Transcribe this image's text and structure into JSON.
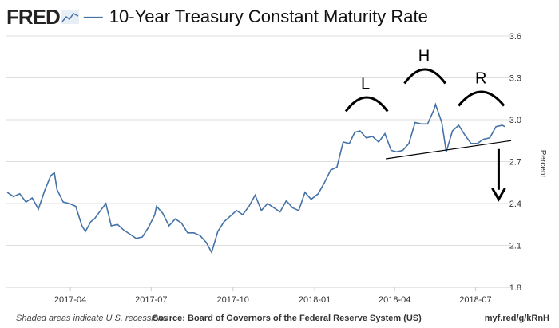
{
  "header": {
    "logo_text": "FRED",
    "logo_icon": "sparkline-icon",
    "title": "10-Year Treasury Constant Maturity Rate"
  },
  "footer": {
    "recession_note": "Shaded areas indicate U.S. recessions",
    "source": "Source: Board of Governors of the Federal Reserve System (US)",
    "short_url": "myf.red/g/kRnH"
  },
  "colors": {
    "series": "#4572a7",
    "grid": "#dddddd",
    "annotation": "#000000"
  },
  "chart_data": {
    "type": "line",
    "title": "10-Year Treasury Constant Maturity Rate",
    "xlabel": "",
    "ylabel": "Percent",
    "ylim": [
      1.8,
      3.6
    ],
    "yticks": [
      1.8,
      2.1,
      2.4,
      2.7,
      3.0,
      3.3,
      3.6
    ],
    "ytick_labels": [
      "1.8",
      "2.1",
      "2.4",
      "2.7",
      "3.0",
      "3.3",
      "3.6"
    ],
    "xlim": [
      "2017-01-19",
      "2018-08-10"
    ],
    "xticks": [
      "2017-04-01",
      "2017-07-01",
      "2017-10-01",
      "2018-01-01",
      "2018-04-01",
      "2018-07-01"
    ],
    "xtick_labels": [
      "2017-04",
      "2017-07",
      "2017-10",
      "2018-01",
      "2018-04",
      "2018-07"
    ],
    "grid": true,
    "series": [
      {
        "x": [
          "2017-01-20",
          "2017-01-27",
          "2017-02-03",
          "2017-02-10",
          "2017-02-17",
          "2017-02-24",
          "2017-03-03",
          "2017-03-10",
          "2017-03-14",
          "2017-03-17",
          "2017-03-24",
          "2017-03-31",
          "2017-04-07",
          "2017-04-14",
          "2017-04-18",
          "2017-04-24",
          "2017-04-28",
          "2017-05-05",
          "2017-05-11",
          "2017-05-17",
          "2017-05-24",
          "2017-05-31",
          "2017-06-07",
          "2017-06-14",
          "2017-06-21",
          "2017-06-28",
          "2017-07-05",
          "2017-07-07",
          "2017-07-14",
          "2017-07-21",
          "2017-07-28",
          "2017-08-04",
          "2017-08-11",
          "2017-08-18",
          "2017-08-25",
          "2017-09-01",
          "2017-09-07",
          "2017-09-14",
          "2017-09-21",
          "2017-09-28",
          "2017-10-05",
          "2017-10-12",
          "2017-10-19",
          "2017-10-26",
          "2017-11-02",
          "2017-11-09",
          "2017-11-16",
          "2017-11-23",
          "2017-11-30",
          "2017-12-07",
          "2017-12-14",
          "2017-12-21",
          "2017-12-28",
          "2018-01-05",
          "2018-01-12",
          "2018-01-19",
          "2018-01-26",
          "2018-02-02",
          "2018-02-09",
          "2018-02-15",
          "2018-02-21",
          "2018-02-28",
          "2018-03-07",
          "2018-03-14",
          "2018-03-21",
          "2018-03-28",
          "2018-04-03",
          "2018-04-10",
          "2018-04-17",
          "2018-04-24",
          "2018-05-01",
          "2018-05-08",
          "2018-05-15",
          "2018-05-17",
          "2018-05-24",
          "2018-05-29",
          "2018-06-05",
          "2018-06-12",
          "2018-06-19",
          "2018-06-26",
          "2018-07-03",
          "2018-07-10",
          "2018-07-17",
          "2018-07-24",
          "2018-07-31",
          "2018-08-03"
        ],
        "y": [
          2.48,
          2.45,
          2.47,
          2.41,
          2.44,
          2.36,
          2.49,
          2.6,
          2.62,
          2.5,
          2.41,
          2.4,
          2.38,
          2.24,
          2.2,
          2.27,
          2.29,
          2.35,
          2.4,
          2.24,
          2.25,
          2.21,
          2.18,
          2.15,
          2.16,
          2.23,
          2.32,
          2.38,
          2.33,
          2.24,
          2.29,
          2.26,
          2.19,
          2.19,
          2.17,
          2.12,
          2.05,
          2.2,
          2.27,
          2.31,
          2.35,
          2.32,
          2.38,
          2.46,
          2.35,
          2.4,
          2.37,
          2.34,
          2.42,
          2.37,
          2.35,
          2.48,
          2.43,
          2.47,
          2.55,
          2.64,
          2.66,
          2.84,
          2.83,
          2.91,
          2.92,
          2.87,
          2.88,
          2.84,
          2.9,
          2.78,
          2.77,
          2.78,
          2.83,
          2.98,
          2.97,
          2.97,
          3.07,
          3.11,
          2.98,
          2.77,
          2.92,
          2.96,
          2.89,
          2.83,
          2.83,
          2.86,
          2.87,
          2.95,
          2.96,
          2.95
        ]
      }
    ],
    "annotations": [
      "L",
      "H",
      "R"
    ],
    "neckline": {
      "x": [
        "2018-03-22",
        "2018-08-10"
      ],
      "y": [
        2.72,
        2.85
      ]
    },
    "projection": {
      "x": "2018-07-27",
      "y_from": 2.79,
      "y_to": 2.43
    }
  }
}
